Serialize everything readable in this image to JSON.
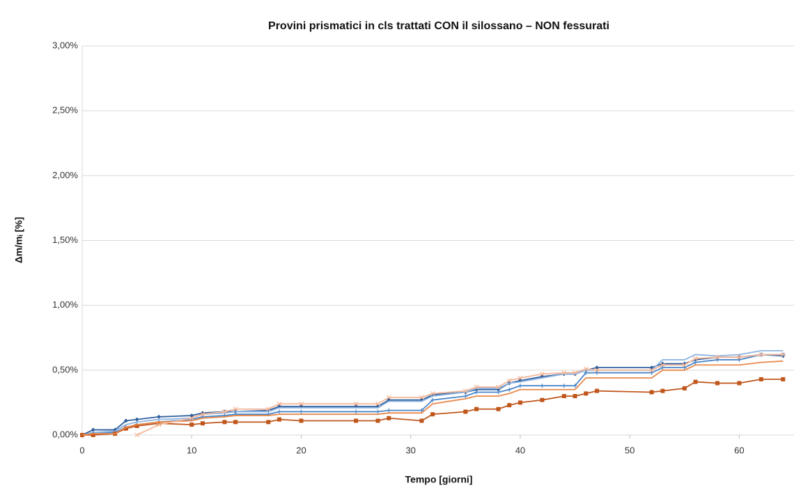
{
  "chart_data": {
    "type": "line",
    "title": "Provini prismatici in cls trattati CON il silossano – NON fessurati",
    "x_label": "Tempo [giorni]",
    "y_label": "Δm/mᵢ [%]",
    "xlim": [
      0,
      65
    ],
    "xticks": [
      0,
      10,
      20,
      30,
      40,
      50,
      60
    ],
    "ylim": [
      0,
      3
    ],
    "yticks": [
      {
        "value": 0,
        "label": "0,00%"
      },
      {
        "value": 0.5,
        "label": "0,50%"
      },
      {
        "value": 1,
        "label": "1,00%"
      },
      {
        "value": 1.5,
        "label": "1,50%"
      },
      {
        "value": 2,
        "label": "2,00%"
      },
      {
        "value": 2.5,
        "label": "2,50%"
      },
      {
        "value": 3,
        "label": "3,00%"
      }
    ],
    "grid": true,
    "x": [
      0,
      1,
      3,
      4,
      5,
      7,
      10,
      11,
      13,
      14,
      17,
      18,
      20,
      25,
      27,
      28,
      31,
      32,
      35,
      36,
      38,
      39,
      40,
      42,
      44,
      45,
      46,
      47,
      52,
      53,
      55,
      56,
      58,
      60,
      62,
      64
    ],
    "series": [
      {
        "color": "#2f5f9e",
        "marker": "diamond",
        "values": [
          0,
          0.04,
          0.04,
          0.11,
          0.12,
          0.14,
          0.15,
          0.17,
          0.18,
          0.18,
          0.19,
          0.22,
          0.22,
          0.22,
          0.22,
          0.27,
          0.27,
          0.31,
          0.33,
          0.35,
          0.35,
          0.4,
          0.42,
          0.45,
          0.47,
          0.47,
          0.5,
          0.52,
          0.52,
          0.55,
          0.55,
          0.58,
          0.6,
          0.6,
          0.62,
          0.61
        ]
      },
      {
        "color": "#8db4e2",
        "marker": "none",
        "values": [
          0,
          0.02,
          0.03,
          0.08,
          0.1,
          0.12,
          0.13,
          0.16,
          0.17,
          0.18,
          0.18,
          0.21,
          0.21,
          0.21,
          0.21,
          0.26,
          0.26,
          0.3,
          0.33,
          0.36,
          0.36,
          0.4,
          0.41,
          0.44,
          0.47,
          0.47,
          0.5,
          0.5,
          0.5,
          0.58,
          0.58,
          0.62,
          0.61,
          0.62,
          0.65,
          0.65
        ]
      },
      {
        "color": "#4a86c8",
        "marker": "plus",
        "values": [
          0,
          0.01,
          0.02,
          0.06,
          0.08,
          0.1,
          0.12,
          0.14,
          0.15,
          0.16,
          0.16,
          0.18,
          0.18,
          0.18,
          0.18,
          0.19,
          0.19,
          0.27,
          0.3,
          0.33,
          0.33,
          0.35,
          0.38,
          0.38,
          0.38,
          0.38,
          0.48,
          0.48,
          0.48,
          0.52,
          0.52,
          0.56,
          0.58,
          0.58,
          0.62,
          0.62
        ]
      },
      {
        "color": "#c0561b",
        "marker": "square",
        "values": [
          0,
          0,
          0.01,
          0.05,
          0.07,
          0.09,
          0.08,
          0.09,
          0.1,
          0.1,
          0.1,
          0.12,
          0.11,
          0.11,
          0.11,
          0.13,
          0.11,
          0.16,
          0.18,
          0.2,
          0.2,
          0.23,
          0.25,
          0.27,
          0.3,
          0.3,
          0.32,
          0.34,
          0.33,
          0.34,
          0.36,
          0.41,
          0.4,
          0.4,
          0.43,
          0.43
        ]
      },
      {
        "color": "#e8884a",
        "marker": "none",
        "values": [
          0,
          0.01,
          0.01,
          0.06,
          0.08,
          0.1,
          0.11,
          0.13,
          0.14,
          0.15,
          0.15,
          0.16,
          0.16,
          0.16,
          0.16,
          0.17,
          0.17,
          0.24,
          0.28,
          0.3,
          0.3,
          0.32,
          0.35,
          0.35,
          0.35,
          0.35,
          0.44,
          0.44,
          0.44,
          0.5,
          0.5,
          0.54,
          0.54,
          0.54,
          0.56,
          0.57
        ]
      },
      {
        "color": "#f4b89a",
        "marker": "x",
        "values": [
          null,
          null,
          null,
          null,
          0,
          0.08,
          0.13,
          0.16,
          0.18,
          0.2,
          0.2,
          0.24,
          0.24,
          0.24,
          0.24,
          0.29,
          0.29,
          0.32,
          0.34,
          0.37,
          0.37,
          0.42,
          0.44,
          0.47,
          0.48,
          0.48,
          0.51,
          0.5,
          0.5,
          0.54,
          0.54,
          0.59,
          0.6,
          0.6,
          0.62,
          0.62
        ]
      }
    ]
  }
}
